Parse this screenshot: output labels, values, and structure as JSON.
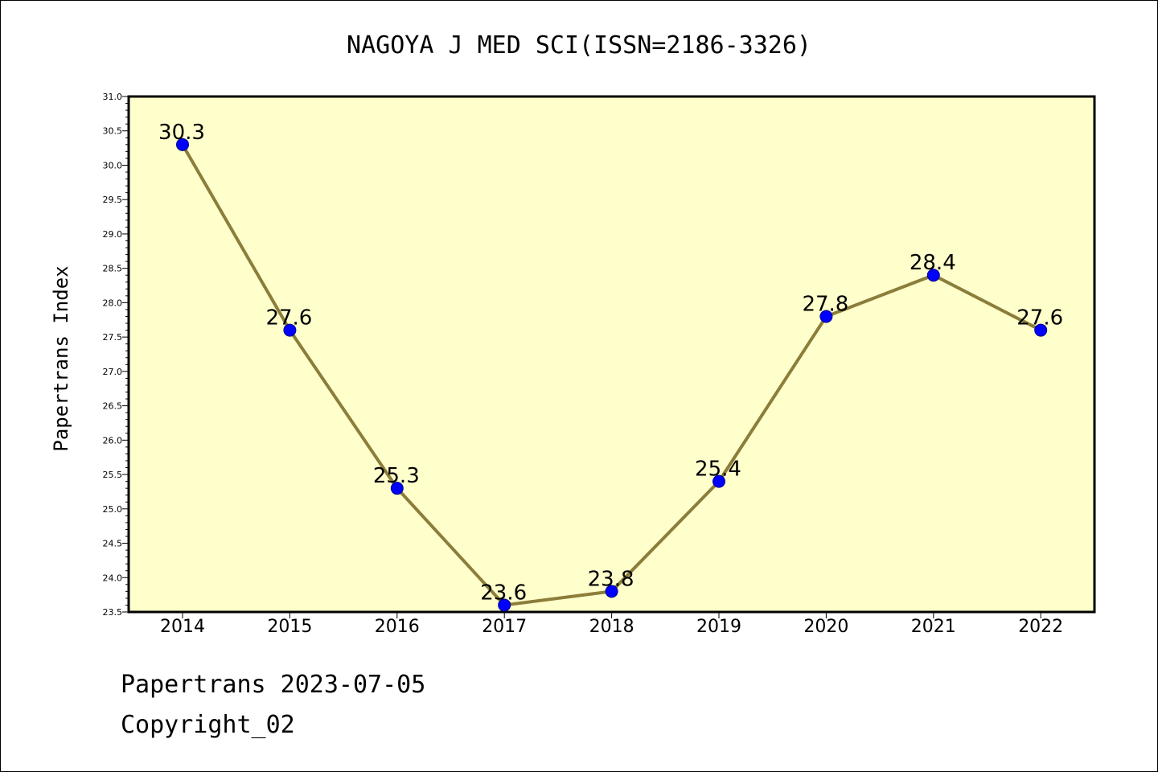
{
  "chart_data": {
    "type": "line",
    "title": "NAGOYA J MED SCI(ISSN=2186-3326)",
    "xlabel": "",
    "ylabel": "Papertrans Index",
    "x": [
      "2014",
      "2015",
      "2016",
      "2017",
      "2018",
      "2019",
      "2020",
      "2021",
      "2022"
    ],
    "series": [
      {
        "values": [
          30.3,
          27.6,
          25.3,
          23.6,
          23.8,
          25.4,
          27.8,
          28.4,
          27.6
        ],
        "labels": [
          "30.3",
          "27.6",
          "25.3",
          "23.6",
          "23.8",
          "25.4",
          "27.8",
          "28.4",
          "27.6"
        ]
      }
    ],
    "ylim": [
      23.5,
      31.0
    ],
    "yticks": [
      "23.5",
      "24.0",
      "24.5",
      "25.0",
      "25.5",
      "26.0",
      "26.5",
      "27.0",
      "27.5",
      "28.0",
      "28.5",
      "29.0",
      "29.5",
      "30.0",
      "30.5",
      "31.0"
    ],
    "grid": false,
    "legend": "none",
    "colors": {
      "plot_background": "#ffffcc",
      "line": "#8b7d3a",
      "marker": "#0000ff"
    }
  },
  "footer": {
    "line1": "Papertrans 2023-07-05",
    "line2": "Copyright_02"
  }
}
